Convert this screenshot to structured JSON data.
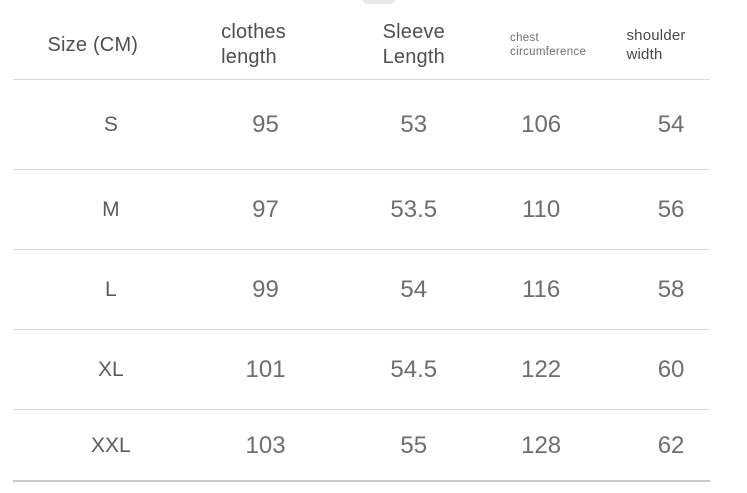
{
  "header": {
    "size": "Size (CM)",
    "clothes": {
      "line1": "clothes",
      "line2": "length"
    },
    "sleeve": {
      "line1": "Sleeve",
      "line2": "Length"
    },
    "chest": {
      "line1": "chest",
      "line2": "circumference"
    },
    "shoulder": {
      "line1": "shoulder",
      "line2": "width"
    }
  },
  "chart_data": {
    "type": "table",
    "title": "Size (CM)",
    "columns": [
      "Size (CM)",
      "clothes length",
      "Sleeve Length",
      "chest circumference",
      "shoulder width"
    ],
    "rows": [
      [
        "S",
        "95",
        "53",
        "106",
        "54"
      ],
      [
        "M",
        "97",
        "53.5",
        "110",
        "56"
      ],
      [
        "L",
        "99",
        "54",
        "116",
        "58"
      ],
      [
        "XL",
        "101",
        "54.5",
        "122",
        "60"
      ],
      [
        "XXL",
        "103",
        "55",
        "128",
        "62"
      ]
    ],
    "units": "CM",
    "layout": {
      "grid": "horizontal-separators-only",
      "header_position": "top"
    }
  },
  "colors": {
    "background": "#ffffff",
    "header_text": "#4f4f4f",
    "small_header_text": "#6e6e6e",
    "value_text": "#6e6e6e",
    "divider": "#dbdbd7",
    "bottom_rule": "#c9c9c5"
  }
}
